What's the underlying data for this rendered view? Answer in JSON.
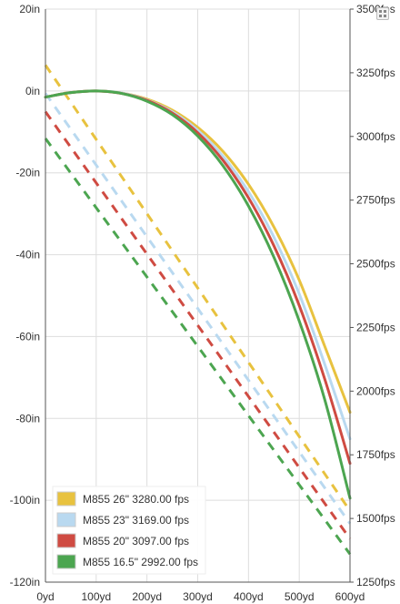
{
  "chart_data": {
    "type": "line",
    "title": "",
    "xlabel": "",
    "ylabel": "",
    "y2label": "",
    "x_ticks": [
      "0yd",
      "100yd",
      "200yd",
      "300yd",
      "400yd",
      "500yd",
      "600yd"
    ],
    "y_ticks": [
      "20in",
      "0in",
      "-20in",
      "-40in",
      "-60in",
      "-80in",
      "-100in",
      "-120in"
    ],
    "y2_ticks": [
      "3500fps",
      "3250fps",
      "3000fps",
      "2750fps",
      "2500fps",
      "2250fps",
      "2000fps",
      "1750fps",
      "1500fps",
      "1250fps"
    ],
    "xlim": [
      0,
      600
    ],
    "ylim": [
      -120,
      20
    ],
    "y2lim": [
      1250,
      3500
    ],
    "grid": true,
    "legend_position": "bottom-left",
    "series": [
      {
        "name": "M855 26\" 3280.00 fps",
        "color": "#e8c23f",
        "x": [
          0,
          50,
          100,
          150,
          200,
          250,
          300,
          350,
          400,
          450,
          500,
          550,
          600
        ],
        "drop": [
          -1.5,
          -0.4,
          0.0,
          -0.5,
          -2.0,
          -4.7,
          -8.9,
          -14.8,
          -22.8,
          -33.2,
          -46.2,
          -62.3,
          -78.5
        ],
        "velocity": [
          3280,
          3165,
          3050,
          2937,
          2826,
          2717,
          2611,
          2506,
          2404,
          2303,
          2205,
          2108,
          1530
        ]
      },
      {
        "name": "M855 23\" 3169.00 fps",
        "color": "#b9d9f0",
        "x": [
          0,
          50,
          100,
          150,
          200,
          250,
          300,
          350,
          400,
          450,
          500,
          550,
          600
        ],
        "drop": [
          -1.5,
          -0.4,
          0.0,
          -0.5,
          -2.2,
          -5.1,
          -9.6,
          -16.0,
          -24.6,
          -35.7,
          -49.6,
          -66.7,
          -85.0
        ],
        "velocity": [
          3169,
          3055,
          2943,
          2832,
          2724,
          2618,
          2514,
          2412,
          2313,
          2216,
          2121,
          2028,
          1480
        ]
      },
      {
        "name": "M855 20\" 3097.00 fps",
        "color": "#cf4b42",
        "x": [
          0,
          50,
          100,
          150,
          200,
          250,
          300,
          350,
          400,
          450,
          500,
          550,
          600
        ],
        "drop": [
          -1.5,
          -0.4,
          0.0,
          -0.6,
          -2.3,
          -5.4,
          -10.2,
          -17.0,
          -26.1,
          -37.8,
          -52.4,
          -70.3,
          -91.0
        ],
        "velocity": [
          3097,
          2984,
          2873,
          2764,
          2657,
          2552,
          2450,
          2350,
          2253,
          2158,
          2066,
          1975,
          1420
        ]
      },
      {
        "name": "M855 16.5\" 2992.00 fps",
        "color": "#4ca550",
        "x": [
          0,
          50,
          100,
          150,
          200,
          250,
          300,
          350,
          400,
          450,
          500,
          550,
          600
        ],
        "drop": [
          -1.5,
          -0.4,
          0.0,
          -0.6,
          -2.5,
          -5.8,
          -11.0,
          -18.3,
          -28.1,
          -40.6,
          -56.2,
          -75.3,
          -99.5
        ],
        "velocity": [
          2992,
          2880,
          2771,
          2663,
          2558,
          2455,
          2355,
          2257,
          2162,
          2069,
          1979,
          1891,
          1360
        ]
      }
    ]
  }
}
